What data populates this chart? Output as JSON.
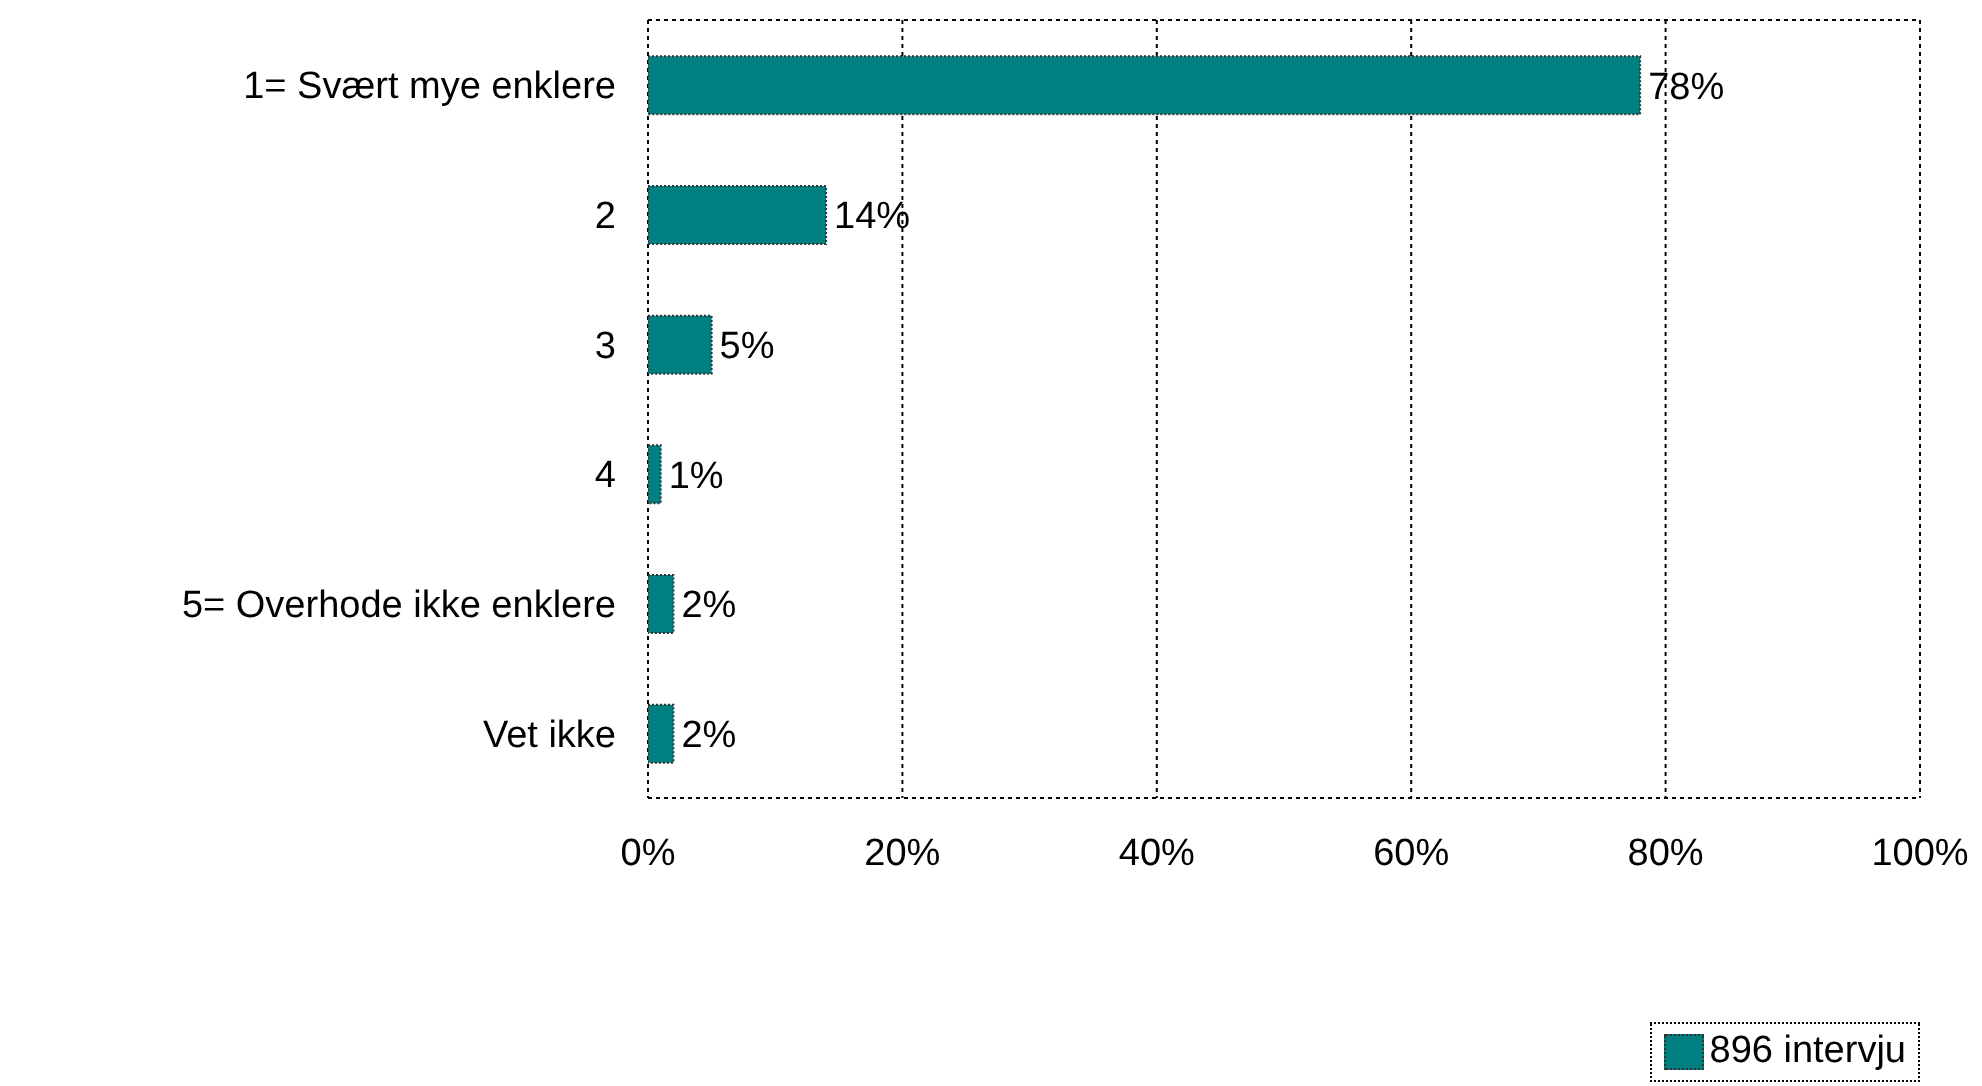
{
  "chart_data": {
    "type": "bar",
    "orientation": "horizontal",
    "categories": [
      "1= Svært mye enklere",
      "2",
      "3",
      "4",
      "5= Overhode ikke enklere",
      "Vet ikke"
    ],
    "series": [
      {
        "name": "896 intervju",
        "color": "#008080",
        "values": [
          78,
          14,
          5,
          1,
          2,
          2
        ],
        "value_labels": [
          "78%",
          "14%",
          "5%",
          "1%",
          "2%",
          "2%"
        ]
      }
    ],
    "xlim": [
      0,
      100
    ],
    "xticks": [
      {
        "value": 0,
        "label": "0%"
      },
      {
        "value": 20,
        "label": "20%"
      },
      {
        "value": 40,
        "label": "40%"
      },
      {
        "value": 60,
        "label": "60%"
      },
      {
        "value": 80,
        "label": "80%"
      },
      {
        "value": 100,
        "label": "100%"
      }
    ],
    "grid": "x",
    "legend": "bottom right"
  }
}
